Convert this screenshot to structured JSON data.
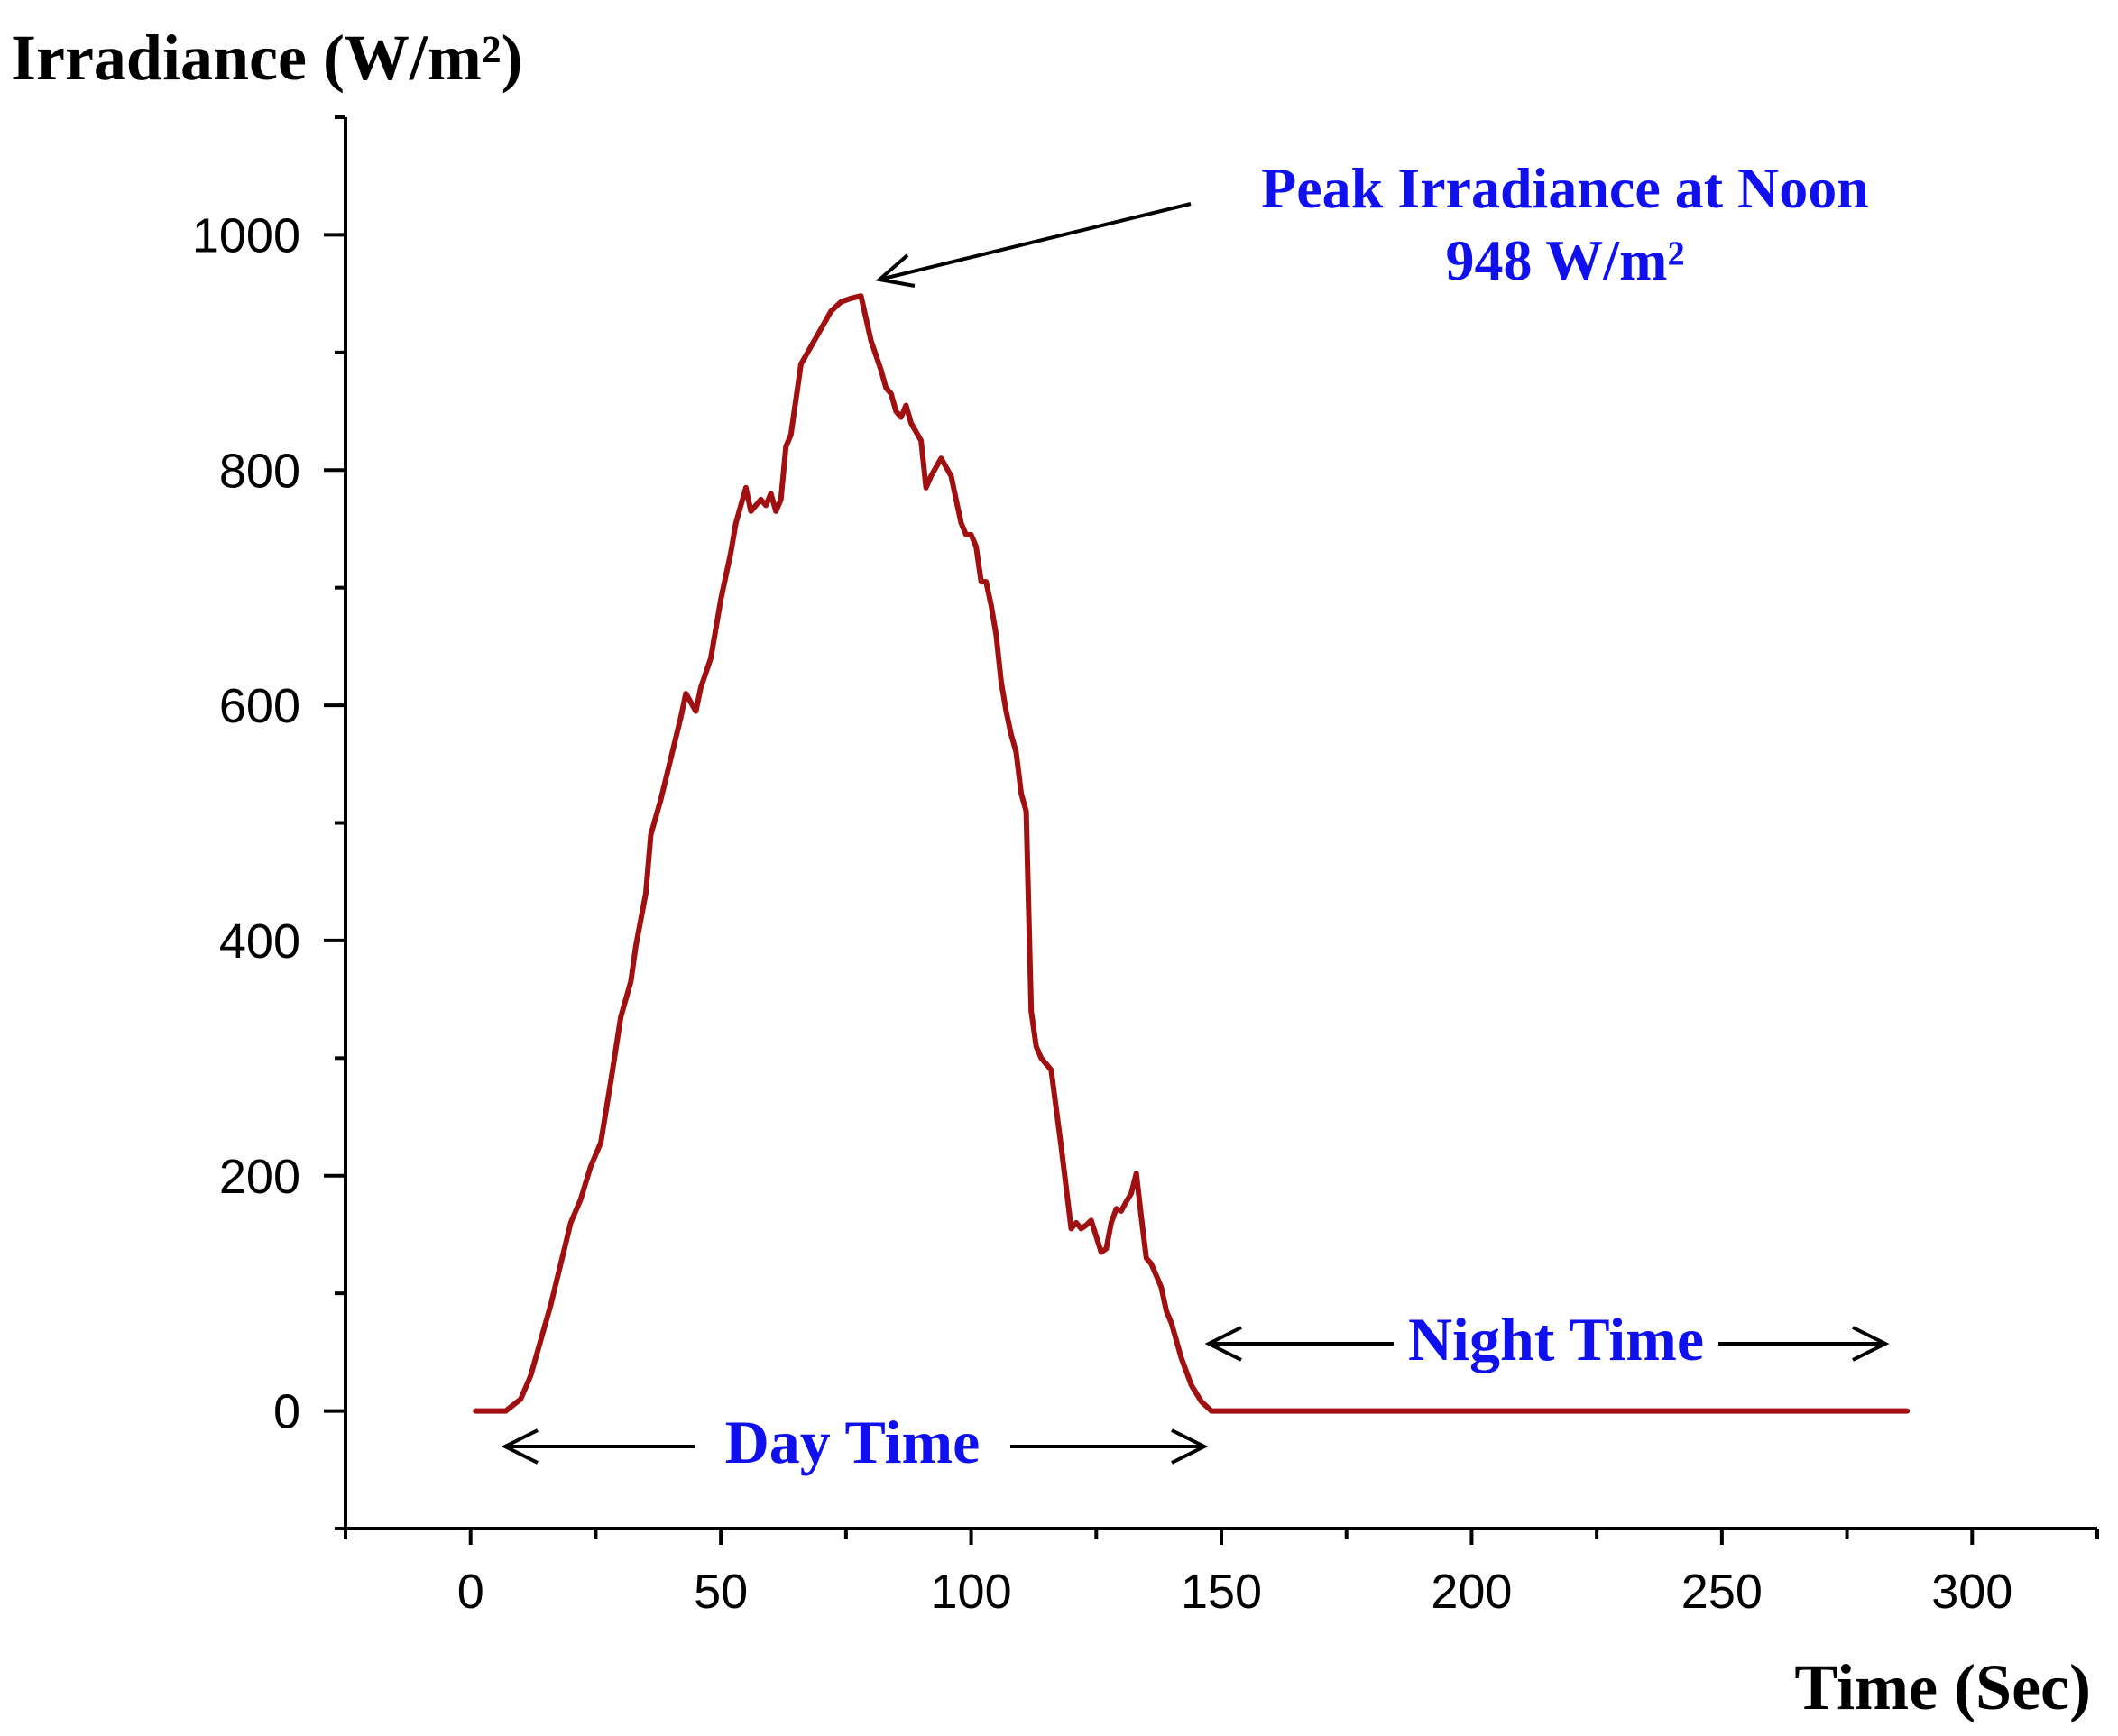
{
  "chart_data": {
    "type": "line",
    "title": "",
    "ylabel": "Irradiance (W/m²)",
    "xlabel": "Time (Sec)",
    "xlim": [
      -25,
      325
    ],
    "ylim": [
      -100,
      1100
    ],
    "x_ticks": [
      0,
      50,
      100,
      150,
      200,
      250,
      300
    ],
    "x_tick_labels": [
      "0",
      "50",
      "100",
      "150",
      "200",
      "250",
      "300"
    ],
    "y_ticks": [
      0,
      200,
      400,
      600,
      800,
      1000
    ],
    "y_tick_labels": [
      "0",
      "200",
      "400",
      "600",
      "800",
      "1000"
    ],
    "series": [
      {
        "name": "Irradiance",
        "color": "#a01010",
        "x": [
          1,
          7,
          10,
          12,
          14,
          16,
          18,
          20,
          22,
          24,
          26,
          28,
          30,
          32,
          33,
          35,
          36,
          38,
          40,
          42,
          43,
          45,
          46,
          48,
          50,
          52,
          53,
          54,
          55,
          56,
          58,
          59,
          60,
          61,
          62,
          63,
          64,
          66,
          68,
          70,
          72,
          74,
          76,
          78,
          80,
          82,
          83,
          84,
          85,
          86,
          87,
          88,
          90,
          91,
          92,
          94,
          96,
          97,
          98,
          99,
          100,
          101,
          102,
          103,
          104,
          105,
          106,
          107,
          108,
          109,
          110,
          111,
          112,
          113,
          114,
          116,
          118,
          120,
          121,
          122,
          123,
          124,
          126,
          127,
          128,
          129,
          130,
          131,
          132,
          133,
          134,
          135,
          136,
          137,
          138,
          139,
          140,
          141,
          142,
          144,
          146,
          148,
          150,
          152,
          200,
          250,
          287
        ],
        "values": [
          0,
          0,
          10,
          30,
          60,
          90,
          125,
          160,
          180,
          208,
          228,
          280,
          335,
          365,
          395,
          440,
          490,
          520,
          555,
          590,
          610,
          595,
          615,
          640,
          690,
          730,
          755,
          770,
          785,
          765,
          775,
          770,
          780,
          765,
          775,
          820,
          830,
          890,
          905,
          920,
          935,
          943,
          946,
          948,
          910,
          885,
          870,
          865,
          850,
          845,
          855,
          840,
          825,
          785,
          795,
          810,
          795,
          775,
          755,
          745,
          745,
          735,
          705,
          705,
          685,
          660,
          620,
          595,
          575,
          560,
          525,
          510,
          340,
          310,
          300,
          290,
          225,
          155,
          160,
          155,
          158,
          162,
          135,
          138,
          160,
          172,
          170,
          178,
          185,
          202,
          165,
          130,
          125,
          115,
          105,
          85,
          75,
          60,
          45,
          22,
          8,
          0,
          0,
          0,
          0,
          0,
          0
        ]
      }
    ],
    "annotations": [
      {
        "text": "Peak Irradiance at Noon",
        "color": "#1010ee"
      },
      {
        "text": "948 W/m²",
        "color": "#1010ee"
      },
      {
        "text": "Day Time",
        "color": "#1010ee"
      },
      {
        "text": "Night Time",
        "color": "#1010ee"
      }
    ],
    "grid": false,
    "legend": "none"
  }
}
